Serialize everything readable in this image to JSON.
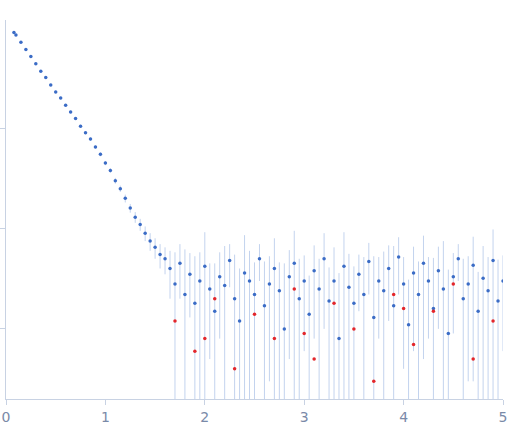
{
  "chart_data": {
    "type": "scatter",
    "log": "y",
    "grid": false,
    "tick_labels": "x",
    "xlim": [
      0,
      5
    ],
    "xticks": [
      0,
      1,
      2,
      3,
      4,
      5
    ],
    "ylim": [
      0.002,
      12
    ],
    "yticks": [
      1,
      0.1,
      0.01
    ],
    "series": [
      {
        "color": "#3b6cc6",
        "marker": "circle",
        "x": [
          0.08,
          0.1,
          0.15,
          0.2,
          0.25,
          0.3,
          0.35,
          0.4,
          0.45,
          0.5,
          0.55,
          0.6,
          0.65,
          0.7,
          0.75,
          0.8,
          0.85,
          0.9,
          0.95,
          1.0,
          1.05,
          1.1,
          1.15,
          1.2,
          1.25,
          1.3,
          1.35,
          1.4,
          1.45,
          1.5,
          1.55,
          1.6,
          1.65,
          1.7,
          1.75,
          1.8,
          1.85,
          1.9,
          1.95,
          2.0,
          2.05,
          2.1,
          2.15,
          2.2,
          2.25,
          2.3,
          2.35,
          2.4,
          2.45,
          2.5,
          2.55,
          2.6,
          2.65,
          2.7,
          2.75,
          2.8,
          2.85,
          2.9,
          2.95,
          3.0,
          3.05,
          3.1,
          3.15,
          3.2,
          3.25,
          3.3,
          3.35,
          3.4,
          3.45,
          3.5,
          3.55,
          3.6,
          3.65,
          3.7,
          3.75,
          3.8,
          3.85,
          3.9,
          3.95,
          4.0,
          4.05,
          4.1,
          4.15,
          4.2,
          4.25,
          4.3,
          4.35,
          4.4,
          4.45,
          4.5,
          4.55,
          4.6,
          4.65,
          4.7,
          4.75,
          4.8,
          4.85,
          4.9,
          4.95,
          5.0
        ],
        "values": [
          9.0,
          8.5,
          7.2,
          6.1,
          5.2,
          4.4,
          3.7,
          3.2,
          2.7,
          2.3,
          2.0,
          1.7,
          1.45,
          1.25,
          1.05,
          0.9,
          0.78,
          0.65,
          0.55,
          0.45,
          0.38,
          0.3,
          0.25,
          0.2,
          0.16,
          0.13,
          0.11,
          0.09,
          0.075,
          0.065,
          0.055,
          0.05,
          0.04,
          0.028,
          0.045,
          0.022,
          0.035,
          0.018,
          0.03,
          0.042,
          0.025,
          0.015,
          0.033,
          0.027,
          0.048,
          0.02,
          0.012,
          0.036,
          0.03,
          0.022,
          0.05,
          0.017,
          0.028,
          0.04,
          0.024,
          0.01,
          0.033,
          0.045,
          0.02,
          0.03,
          0.014,
          0.038,
          0.025,
          0.05,
          0.019,
          0.03,
          0.008,
          0.042,
          0.026,
          0.018,
          0.035,
          0.022,
          0.047,
          0.013,
          0.03,
          0.024,
          0.04,
          0.017,
          0.052,
          0.028,
          0.011,
          0.036,
          0.022,
          0.045,
          0.03,
          0.016,
          0.038,
          0.025,
          0.009,
          0.033,
          0.05,
          0.02,
          0.028,
          0.043,
          0.015,
          0.032,
          0.024,
          0.048,
          0.019,
          0.03
        ],
        "errors": [
          0.3,
          0.25,
          0.2,
          0.17,
          0.14,
          0.12,
          0.1,
          0.09,
          0.08,
          0.07,
          0.06,
          0.05,
          0.045,
          0.04,
          0.035,
          0.03,
          0.03,
          0.025,
          0.025,
          0.022,
          0.02,
          0.02,
          0.018,
          0.018,
          0.016,
          0.016,
          0.015,
          0.015,
          0.015,
          0.015,
          0.015,
          0.015,
          0.02,
          0.03,
          0.025,
          0.04,
          0.022,
          0.035,
          0.028,
          0.05,
          0.02,
          0.03,
          0.025,
          0.04,
          0.022,
          0.035,
          0.028,
          0.05,
          0.03,
          0.024,
          0.02,
          0.03,
          0.025,
          0.04,
          0.022,
          0.035,
          0.028,
          0.05,
          0.03,
          0.024,
          0.02,
          0.03,
          0.025,
          0.04,
          0.022,
          0.035,
          0.028,
          0.05,
          0.03,
          0.024,
          0.02,
          0.03,
          0.025,
          0.04,
          0.022,
          0.035,
          0.028,
          0.05,
          0.03,
          0.024,
          0.02,
          0.03,
          0.025,
          0.04,
          0.022,
          0.035,
          0.028,
          0.05,
          0.03,
          0.024,
          0.02,
          0.03,
          0.025,
          0.04,
          0.022,
          0.035,
          0.028,
          0.05,
          0.03,
          0.024
        ]
      },
      {
        "color": "#e3262b",
        "marker": "circle",
        "x": [
          1.7,
          1.9,
          2.0,
          2.1,
          2.3,
          2.5,
          2.7,
          2.9,
          3.0,
          3.1,
          3.3,
          3.5,
          3.7,
          3.9,
          4.0,
          4.1,
          4.3,
          4.5,
          4.7,
          4.9
        ],
        "values": [
          0.012,
          0.006,
          0.008,
          0.02,
          0.004,
          0.014,
          0.008,
          0.025,
          0.009,
          0.005,
          0.018,
          0.01,
          0.003,
          0.022,
          0.016,
          0.007,
          0.015,
          0.028,
          0.005,
          0.012
        ]
      }
    ]
  }
}
